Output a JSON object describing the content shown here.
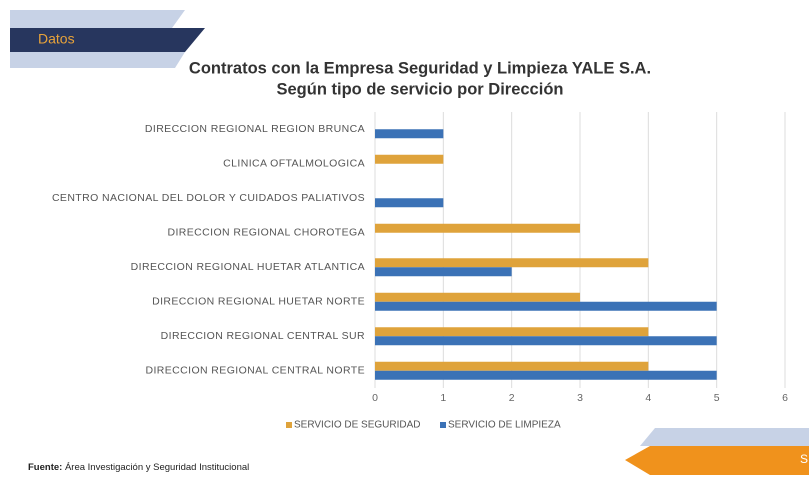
{
  "banner": "Datos",
  "footer": {
    "label": "Fuente:",
    "text": "Área Investigación  y Seguridad Institucional"
  },
  "corner_tab": "S",
  "chart_data": {
    "type": "bar",
    "orientation": "horizontal",
    "title": "Contratos con la Empresa Seguridad y Limpieza YALE S.A.",
    "subtitle": "Según tipo de servicio por Dirección",
    "categories": [
      "DIRECCION REGIONAL REGION BRUNCA",
      "CLINICA OFTALMOLOGICA",
      "CENTRO NACIONAL DEL DOLOR Y CUIDADOS PALIATIVOS",
      "DIRECCION REGIONAL CHOROTEGA",
      "DIRECCION REGIONAL HUETAR ATLANTICA",
      "DIRECCION REGIONAL HUETAR NORTE",
      "DIRECCION REGIONAL CENTRAL SUR",
      "DIRECCION REGIONAL CENTRAL NORTE"
    ],
    "series": [
      {
        "name": "SERVICIO DE SEGURIDAD",
        "color": "#dfa33b",
        "values": [
          0,
          1,
          0,
          3,
          4,
          3,
          4,
          4
        ]
      },
      {
        "name": "SERVICIO DE LIMPIEZA",
        "color": "#3b72b6",
        "values": [
          1,
          0,
          1,
          0,
          2,
          5,
          5,
          5
        ]
      }
    ],
    "xlim": [
      0,
      6
    ],
    "xticks": [
      0,
      1,
      2,
      3,
      4,
      5,
      6
    ],
    "grid": true,
    "legend": "bottom"
  }
}
